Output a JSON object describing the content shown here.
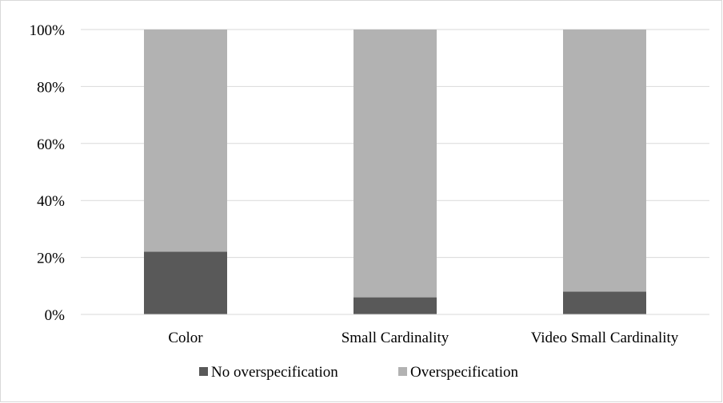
{
  "chart_data": {
    "type": "bar",
    "stacked": true,
    "categories": [
      "Color",
      "Small Cardinality",
      "Video Small Cardinality"
    ],
    "series": [
      {
        "name": "No overspecification",
        "values": [
          22,
          6,
          8
        ],
        "color": "#595959"
      },
      {
        "name": "Overspecification",
        "values": [
          78,
          94,
          92
        ],
        "color": "#b2b2b2"
      }
    ],
    "ylim": [
      0,
      100
    ],
    "yticks": [
      0,
      20,
      40,
      60,
      80,
      100
    ],
    "ytick_suffix": "%",
    "grid": true,
    "gridline_color": "#d9d9d9",
    "legend_position": "bottom"
  }
}
